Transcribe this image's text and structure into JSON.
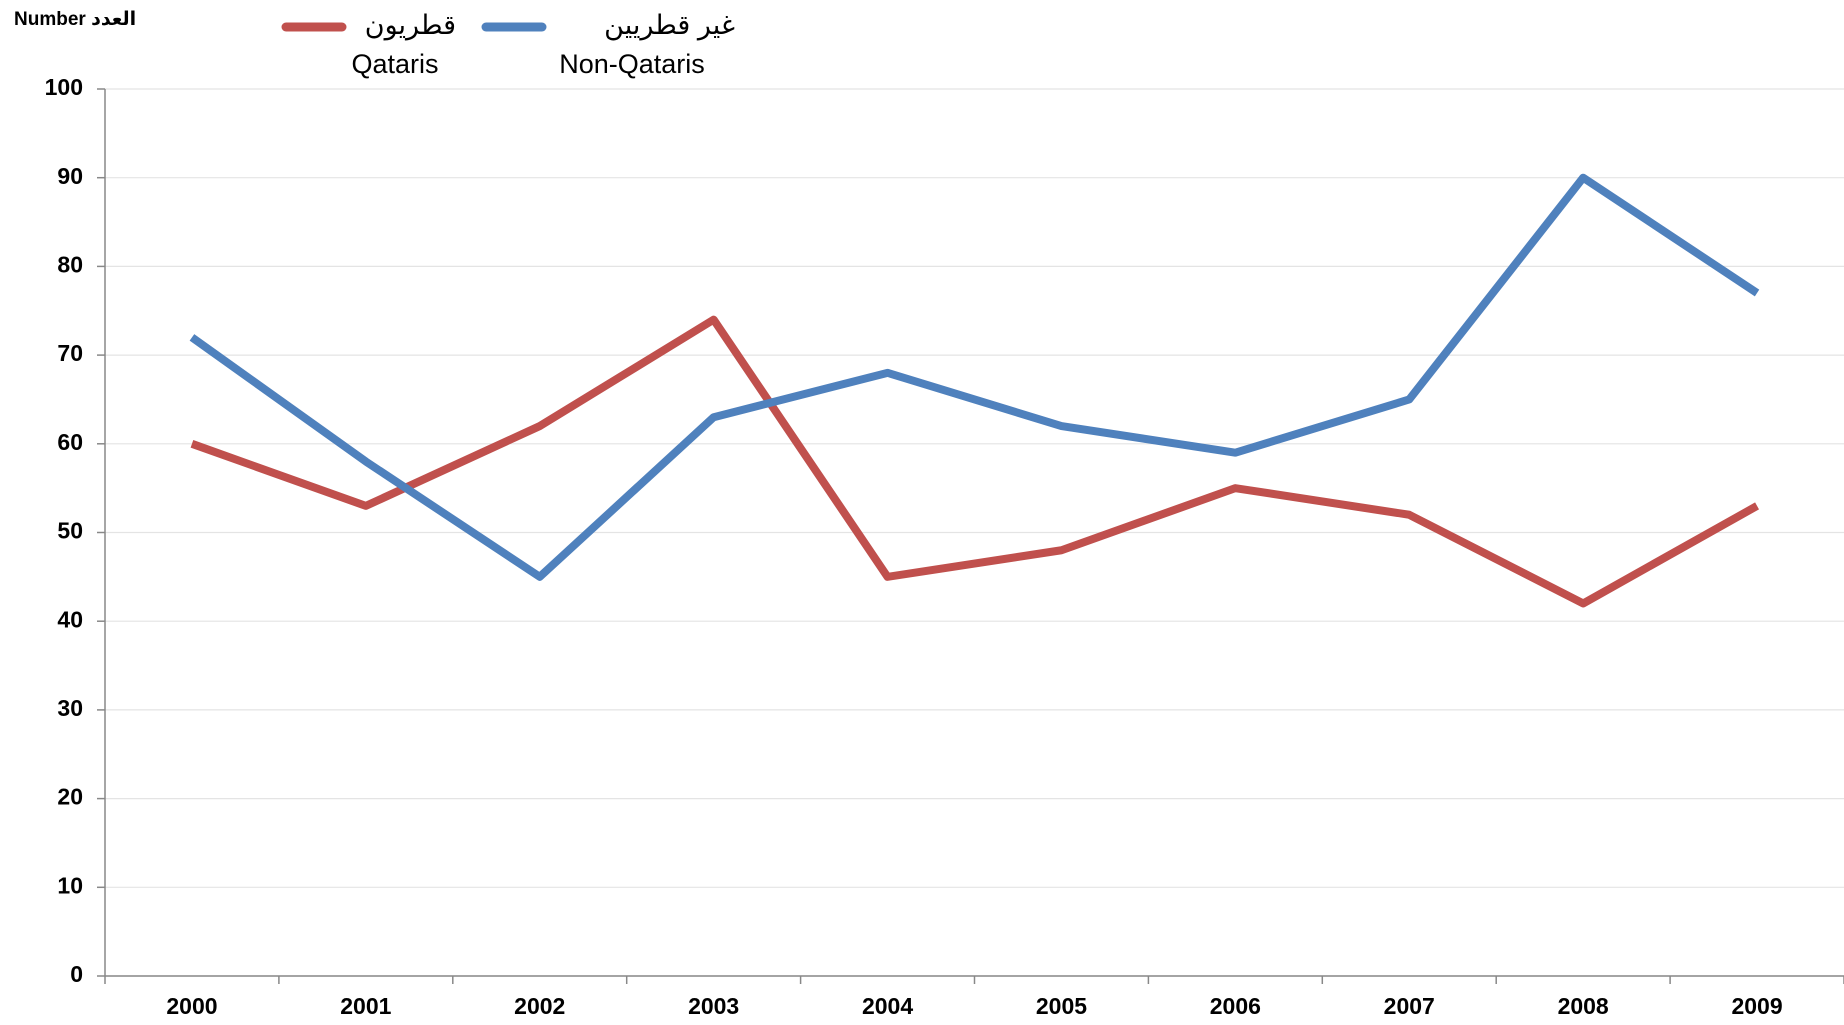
{
  "chart_data": {
    "type": "line",
    "ylabel": "Number العدد",
    "categories": [
      "2000",
      "2001",
      "2002",
      "2003",
      "2004",
      "2005",
      "2006",
      "2007",
      "2008",
      "2009"
    ],
    "series": [
      {
        "name": "Qataris",
        "name_ar": "قطريون",
        "color": "#c0504d",
        "values": [
          60,
          53,
          62,
          74,
          45,
          48,
          55,
          52,
          42,
          53
        ]
      },
      {
        "name": "Non-Qataris",
        "name_ar": "غير قطريين",
        "color": "#4f81bd",
        "values": [
          72,
          58,
          45,
          63,
          68,
          62,
          59,
          65,
          90,
          77
        ]
      }
    ],
    "ylim": [
      0,
      100
    ],
    "yticks": [
      0,
      10,
      20,
      30,
      40,
      50,
      60,
      70,
      80,
      90,
      100
    ],
    "grid": true
  }
}
